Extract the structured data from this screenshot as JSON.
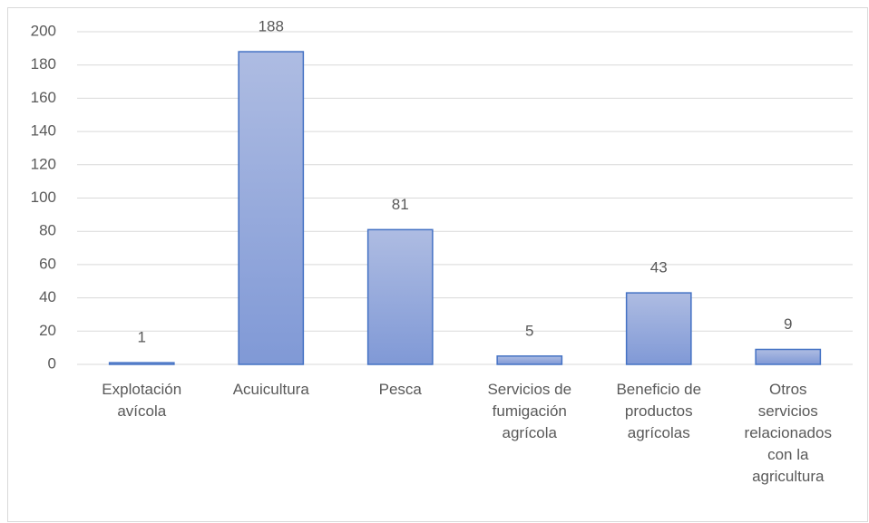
{
  "chart_data": {
    "type": "bar",
    "categories": [
      "Explotación avícola",
      "Acuicultura",
      "Pesca",
      "Servicios de fumigación agrícola",
      "Beneficio de productos agrícolas",
      "Otros servicios relacionados con la agricultura"
    ],
    "values": [
      1,
      188,
      81,
      5,
      43,
      9
    ],
    "color": "#4472c4",
    "ylim": [
      0,
      200
    ],
    "yticks": [
      0,
      20,
      40,
      60,
      80,
      100,
      120,
      140,
      160,
      180,
      200
    ],
    "grid": true
  }
}
